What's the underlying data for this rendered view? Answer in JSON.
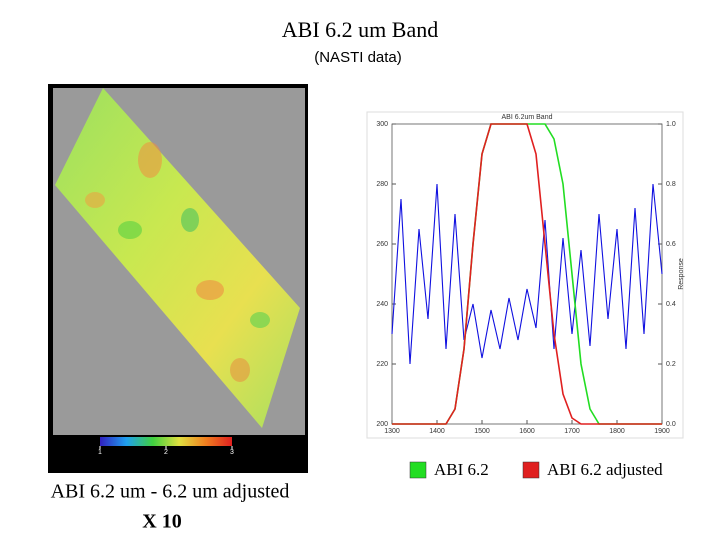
{
  "header": {
    "title": "ABI 6.2 um Band",
    "subtitle": "(NASTI data)"
  },
  "map_panel": {
    "caption_line1": "ABI 6.2 um - 6.2 um adjusted",
    "caption_line2": "X 10",
    "colorbar_ticks": [
      1,
      2,
      3
    ]
  },
  "chart_data": {
    "type": "line",
    "title": "ABI 6.2um Band",
    "y2label": "Response",
    "x": [
      1300,
      1320,
      1340,
      1360,
      1380,
      1400,
      1420,
      1440,
      1460,
      1480,
      1500,
      1520,
      1540,
      1560,
      1580,
      1600,
      1620,
      1640,
      1660,
      1680,
      1700,
      1720,
      1740,
      1760,
      1780,
      1800,
      1820,
      1840,
      1860,
      1880,
      1900
    ],
    "series": [
      {
        "color": "#1010e0",
        "values": [
          230,
          275,
          220,
          265,
          235,
          280,
          225,
          270,
          228,
          240,
          222,
          238,
          225,
          242,
          228,
          245,
          232,
          268,
          225,
          262,
          230,
          258,
          226,
          270,
          235,
          265,
          225,
          272,
          230,
          280,
          250
        ]
      },
      {
        "name": "ABI 6.2",
        "color": "#22dd22",
        "axis": "y2",
        "values": [
          0,
          0,
          0,
          0,
          0,
          0,
          0,
          0.05,
          0.25,
          0.6,
          0.9,
          1,
          1,
          1,
          1,
          1,
          1,
          1,
          0.95,
          0.8,
          0.5,
          0.2,
          0.05,
          0,
          0,
          0,
          0,
          0,
          0,
          0,
          0
        ]
      },
      {
        "name": "ABI 6.2 adjusted",
        "color": "#e02020",
        "axis": "y2",
        "values": [
          0,
          0,
          0,
          0,
          0,
          0,
          0,
          0.05,
          0.25,
          0.6,
          0.9,
          1,
          1,
          1,
          1,
          1,
          0.9,
          0.6,
          0.3,
          0.1,
          0.02,
          0,
          0,
          0,
          0,
          0,
          0,
          0,
          0,
          0,
          0
        ]
      }
    ],
    "xlim": [
      1300,
      1900
    ],
    "ylim": [
      200,
      300
    ],
    "y2lim": [
      0,
      1
    ],
    "xticks": [
      1300,
      1400,
      1500,
      1600,
      1700,
      1800,
      1900
    ],
    "yticks": [
      200,
      220,
      240,
      260,
      280,
      300
    ],
    "y2ticks": [
      {
        "value": 0,
        "label": "0.0"
      },
      0.2,
      0.4,
      0.6,
      0.8,
      {
        "value": 1,
        "label": "1.0"
      }
    ]
  }
}
